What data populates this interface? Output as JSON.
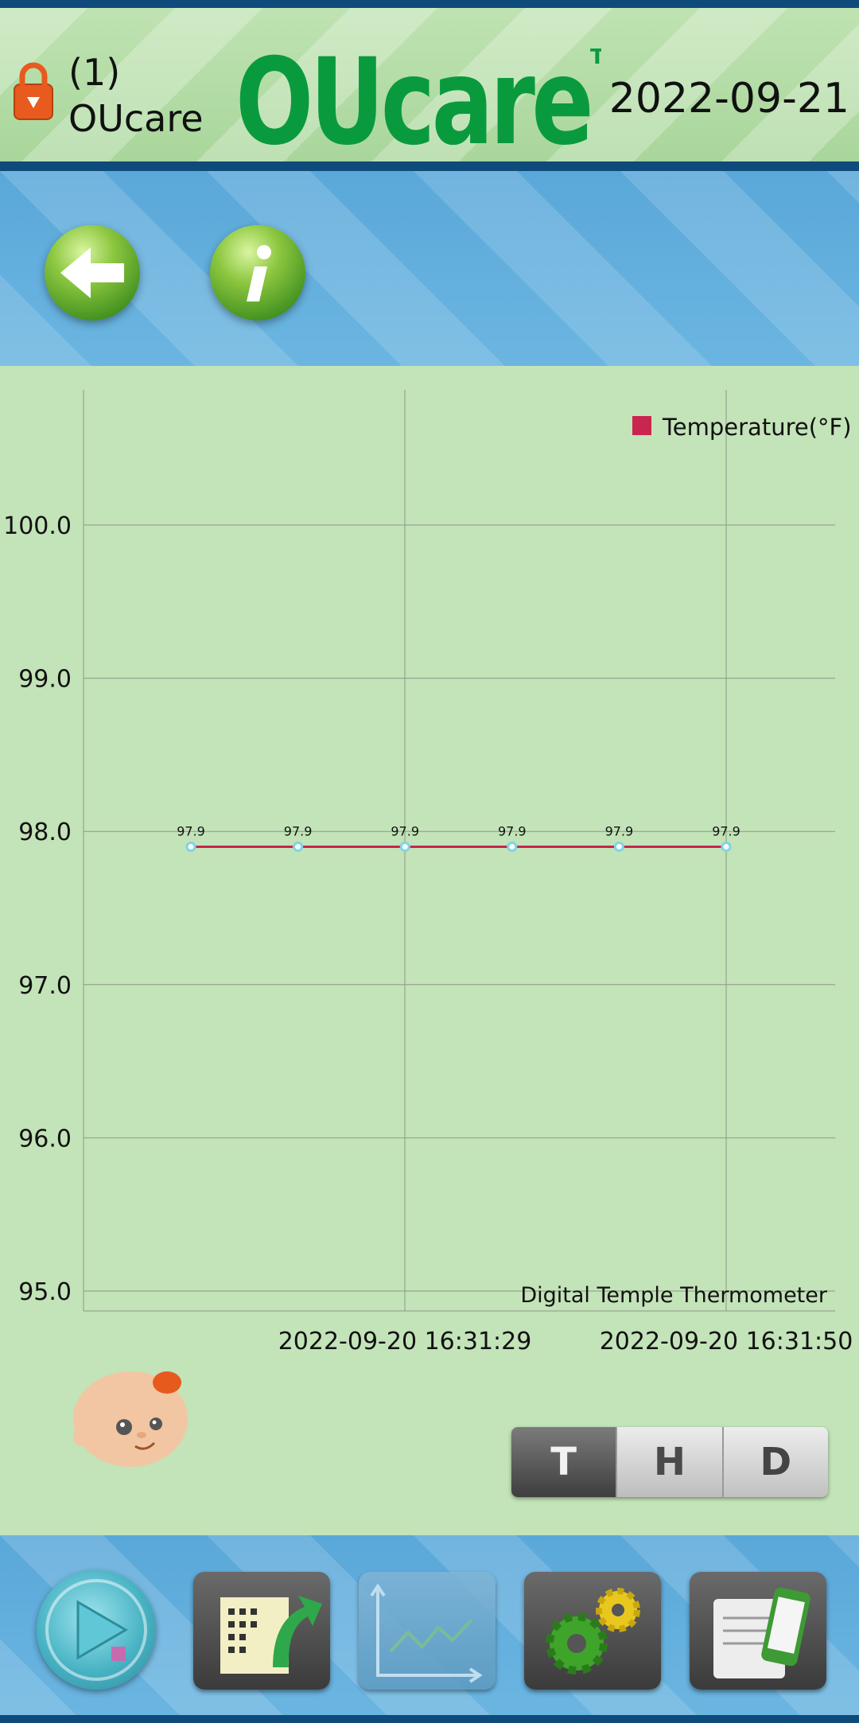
{
  "header": {
    "user_index": "(1)",
    "user_name": "OUcare",
    "logo_text": "OUcare",
    "trademark": "TM",
    "date": "2022-09-21",
    "brand_color": "#0a9a3e"
  },
  "toolbar": {
    "back_icon": "arrow-left-icon",
    "info_icon": "info-icon"
  },
  "chart_data": {
    "type": "line",
    "legend": "Temperature(°F)",
    "legend_position": "top-right",
    "series_color": "#c8264f",
    "subtitle": "Digital Temple Thermometer",
    "y_ticks": [
      "100.0",
      "99.0",
      "98.0",
      "97.0",
      "96.0",
      "95.0"
    ],
    "ylim": [
      95,
      100
    ],
    "x_tick_labels": [
      "2022-09-20 16:31:29",
      "2022-09-20 16:31:50"
    ],
    "values": [
      97.9,
      97.9,
      97.9,
      97.9,
      97.9,
      97.9
    ],
    "value_labels": [
      "97.9",
      "97.9",
      "97.9",
      "97.9",
      "97.9",
      "97.9"
    ],
    "grid": true
  },
  "mode_switch": {
    "options": [
      "T",
      "H",
      "D"
    ],
    "selected": "T"
  },
  "bottom_nav": {
    "items": [
      "play-icon",
      "export-icon",
      "chart-icon",
      "settings-icon",
      "device-icon"
    ],
    "active": "chart-icon"
  }
}
